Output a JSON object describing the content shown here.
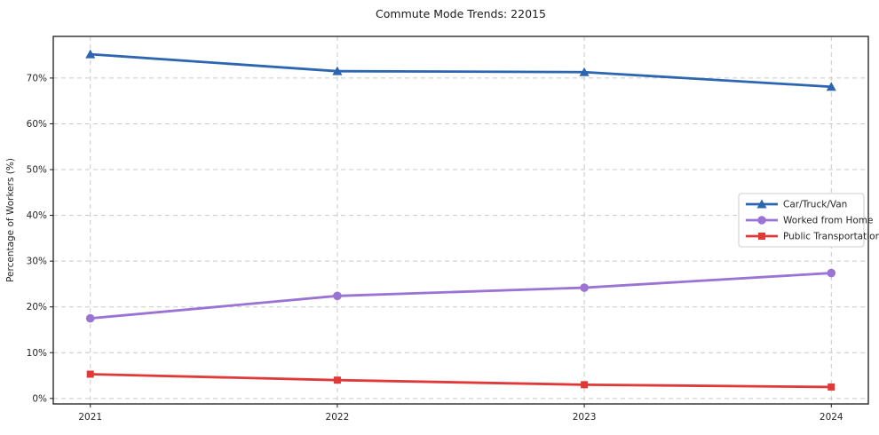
{
  "chart_data": {
    "type": "line",
    "title": "Commute Mode Trends: 22015",
    "xlabel": "",
    "ylabel": "Percentage of Workers (%)",
    "x": [
      2021,
      2022,
      2023,
      2024
    ],
    "xtick_labels": [
      "2021",
      "2022",
      "2023",
      "2024"
    ],
    "yticks": [
      0,
      10,
      20,
      30,
      40,
      50,
      60,
      70
    ],
    "ytick_labels": [
      "0%",
      "10%",
      "20%",
      "30%",
      "40%",
      "50%",
      "60%",
      "70%"
    ],
    "xlim": [
      2020.85,
      2024.15
    ],
    "ylim": [
      -1.2,
      79.1
    ],
    "grid": true,
    "legend_position": "center right",
    "series": [
      {
        "name": "Car/Truck/Van",
        "marker": "triangle",
        "color": "#2d66b0",
        "values": [
          75.2,
          71.5,
          71.3,
          68.1
        ]
      },
      {
        "name": "Worked from Home",
        "marker": "circle",
        "color": "#9b73d4",
        "values": [
          17.5,
          22.4,
          24.2,
          27.4
        ]
      },
      {
        "name": "Public Transportation",
        "marker": "square",
        "color": "#e03a38",
        "values": [
          5.3,
          4.0,
          3.0,
          2.5
        ]
      }
    ]
  },
  "colors": {
    "background": "#ffffff",
    "grid": "#c9c9c9",
    "axis": "#1a1a1a",
    "text": "#262626"
  }
}
